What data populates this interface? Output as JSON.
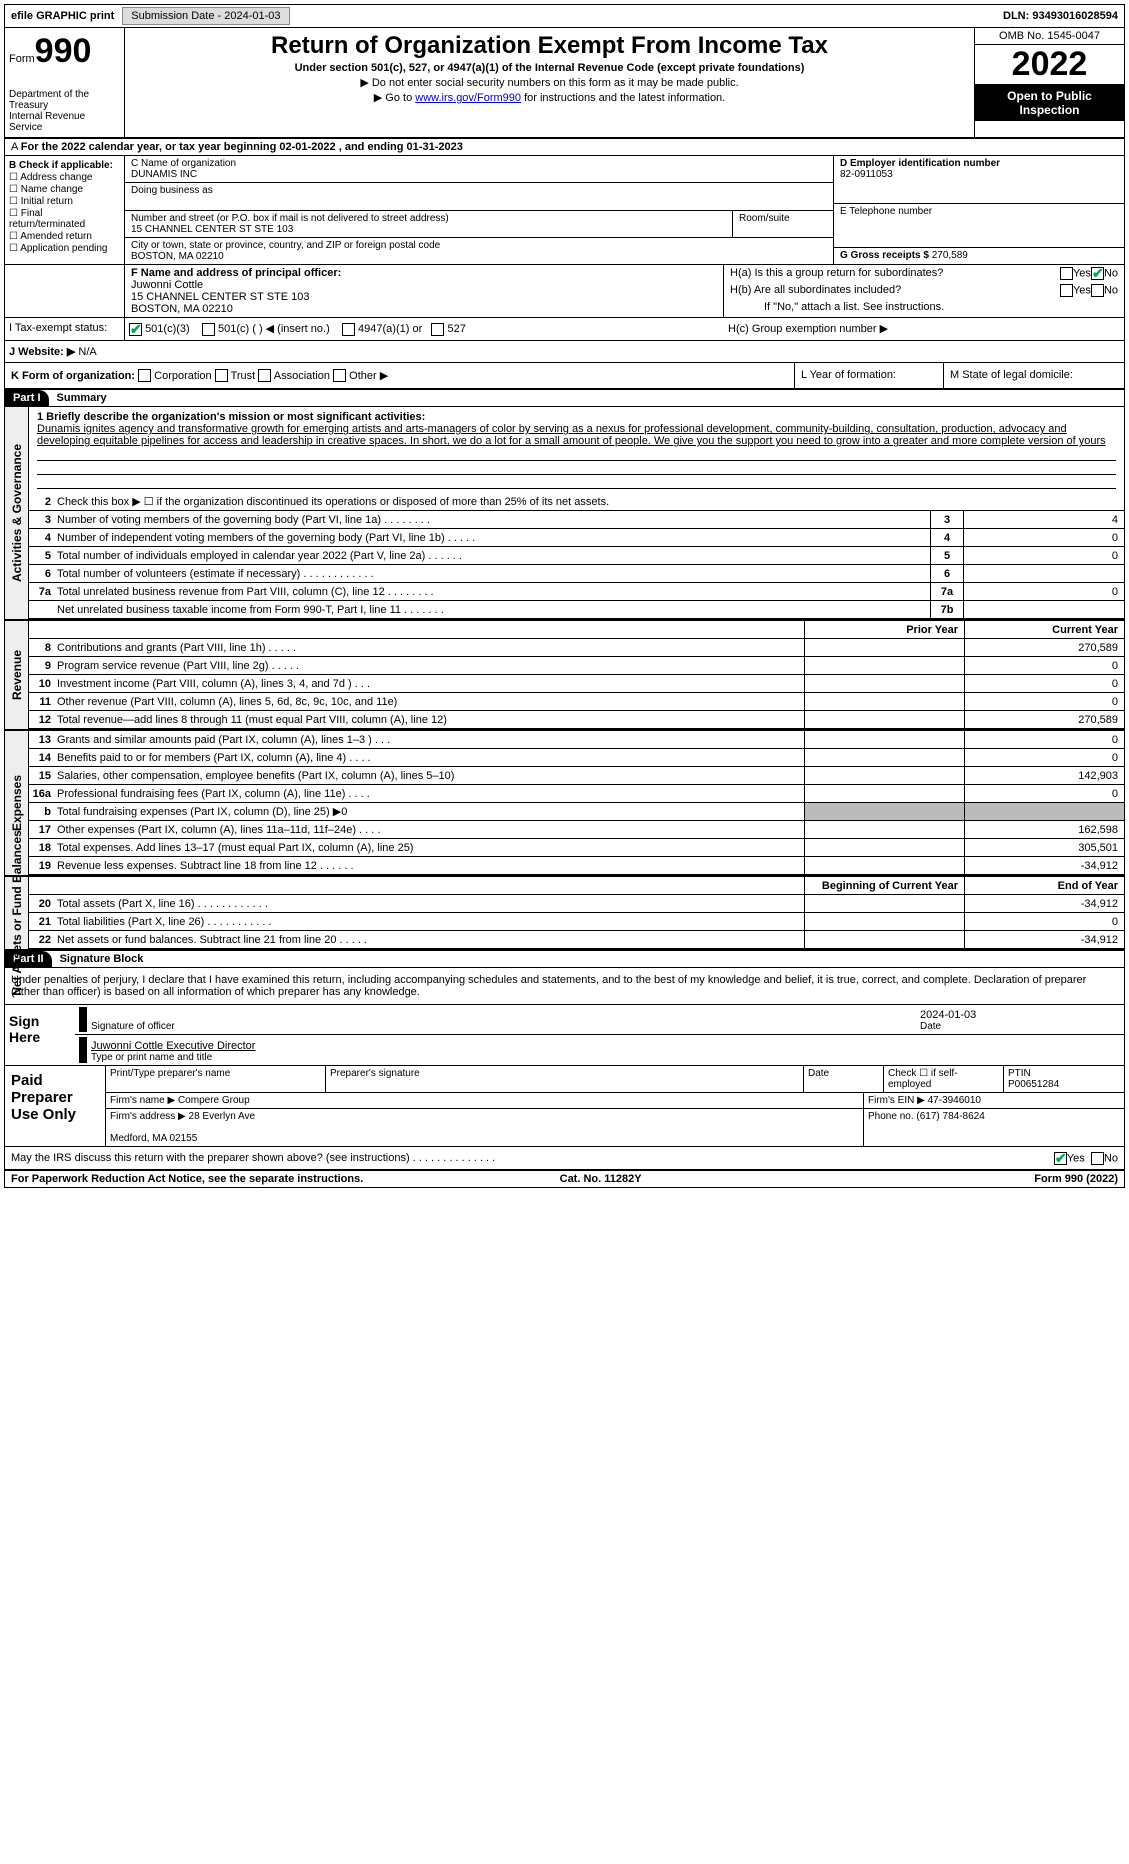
{
  "topbar": {
    "efile_label": "efile GRAPHIC print",
    "submission": "Submission Date - 2024-01-03",
    "dln": "DLN: 93493016028594"
  },
  "header": {
    "form_label": "Form",
    "form_num": "990",
    "dept": "Department of the Treasury",
    "irs": "Internal Revenue Service",
    "title": "Return of Organization Exempt From Income Tax",
    "subtitle": "Under section 501(c), 527, or 4947(a)(1) of the Internal Revenue Code (except private foundations)",
    "note1": "▶ Do not enter social security numbers on this form as it may be made public.",
    "note2_pre": "▶ Go to ",
    "note2_link": "www.irs.gov/Form990",
    "note2_post": " for instructions and the latest information.",
    "omb": "OMB No. 1545-0047",
    "year": "2022",
    "open": "Open to Public Inspection"
  },
  "row_a": "For the 2022 calendar year, or tax year beginning 02-01-2022    , and ending 01-31-2023",
  "check_b": {
    "label": "B Check if applicable:",
    "items": [
      "Address change",
      "Name change",
      "Initial return",
      "Final return/terminated",
      "Amended return",
      "Application pending"
    ]
  },
  "org": {
    "c_label": "C Name of organization",
    "name": "DUNAMIS INC",
    "dba_label": "Doing business as",
    "addr_label": "Number and street (or P.O. box if mail is not delivered to street address)",
    "room_label": "Room/suite",
    "addr": "15 CHANNEL CENTER ST STE 103",
    "city_label": "City or town, state or province, country, and ZIP or foreign postal code",
    "city": "BOSTON, MA  02210",
    "f_label": "F  Name and address of principal officer:",
    "officer": "Juwonni Cottle",
    "officer_addr": "15 CHANNEL CENTER ST STE 103\nBOSTON, MA  02210"
  },
  "right": {
    "d_label": "D Employer identification number",
    "ein": "82-0911053",
    "e_label": "E Telephone number",
    "g_label": "G Gross receipts $",
    "g_val": "270,589",
    "ha": "H(a)  Is this a group return for subordinates?",
    "hb": "H(b)  Are all subordinates included?",
    "hb_note": "If \"No,\" attach a list. See instructions.",
    "hc": "H(c)  Group exemption number ▶",
    "yes": "Yes",
    "no": "No"
  },
  "status": {
    "i_label": "I   Tax-exempt status:",
    "opts": [
      "501(c)(3)",
      "501(c) (  ) ◀ (insert no.)",
      "4947(a)(1) or",
      "527"
    ],
    "j_label": "J   Website: ▶",
    "j_val": "N/A",
    "k_label": "K Form of organization:",
    "k_opts": [
      "Corporation",
      "Trust",
      "Association",
      "Other ▶"
    ],
    "l_label": "L Year of formation:",
    "m_label": "M State of legal domicile:"
  },
  "part1": {
    "hdr": "Part I",
    "title": "Summary",
    "l1_label": "1  Briefly describe the organization's mission or most significant activities:",
    "mission": "Dunamis ignites agency and transformative growth for emerging artists and arts-managers of color by serving as a nexus for professional development, community-building, consultation, production, advocacy and developing equitable pipelines for access and leadership in creative spaces. In short, we do a lot for a small amount of people. We give you the support you need to grow into a greater and more complete version of yours",
    "l2": "Check this box ▶ ☐  if the organization discontinued its operations or disposed of more than 25% of its net assets.",
    "lines_gov": [
      {
        "n": "3",
        "t": "Number of voting members of the governing body (Part VI, line 1a)   .    .    .    .    .    .    .    .",
        "b": "3",
        "v": "4"
      },
      {
        "n": "4",
        "t": "Number of independent voting members of the governing body (Part VI, line 1b)   .    .    .    .    .",
        "b": "4",
        "v": "0"
      },
      {
        "n": "5",
        "t": "Total number of individuals employed in calendar year 2022 (Part V, line 2a)   .    .    .    .    .    .",
        "b": "5",
        "v": "0"
      },
      {
        "n": "6",
        "t": "Total number of volunteers (estimate if necessary)   .    .    .    .    .    .    .    .    .    .    .    .",
        "b": "6",
        "v": ""
      },
      {
        "n": "7a",
        "t": "Total unrelated business revenue from Part VIII, column (C), line 12   .    .    .    .    .    .    .    .",
        "b": "7a",
        "v": "0"
      },
      {
        "n": "",
        "t": "Net unrelated business taxable income from Form 990-T, Part I, line 11   .    .    .    .    .    .    .",
        "b": "7b",
        "v": ""
      }
    ],
    "col_prior": "Prior Year",
    "col_current": "Current Year",
    "lines_rev": [
      {
        "n": "8",
        "t": "Contributions and grants (Part VIII, line 1h)   .    .    .    .    .",
        "v1": "",
        "v2": "270,589"
      },
      {
        "n": "9",
        "t": "Program service revenue (Part VIII, line 2g)   .    .    .    .    .",
        "v1": "",
        "v2": "0"
      },
      {
        "n": "10",
        "t": "Investment income (Part VIII, column (A), lines 3, 4, and 7d )   .    .    .",
        "v1": "",
        "v2": "0"
      },
      {
        "n": "11",
        "t": "Other revenue (Part VIII, column (A), lines 5, 6d, 8c, 9c, 10c, and 11e)",
        "v1": "",
        "v2": "0"
      },
      {
        "n": "12",
        "t": "Total revenue—add lines 8 through 11 (must equal Part VIII, column (A), line 12)",
        "v1": "",
        "v2": "270,589"
      }
    ],
    "lines_exp": [
      {
        "n": "13",
        "t": "Grants and similar amounts paid (Part IX, column (A), lines 1–3 )   .    .    .",
        "v1": "",
        "v2": "0"
      },
      {
        "n": "14",
        "t": "Benefits paid to or for members (Part IX, column (A), line 4)   .    .    .    .",
        "v1": "",
        "v2": "0"
      },
      {
        "n": "15",
        "t": "Salaries, other compensation, employee benefits (Part IX, column (A), lines 5–10)",
        "v1": "",
        "v2": "142,903"
      },
      {
        "n": "16a",
        "t": "Professional fundraising fees (Part IX, column (A), line 11e)   .    .    .    .",
        "v1": "",
        "v2": "0"
      },
      {
        "n": "b",
        "t": "Total fundraising expenses (Part IX, column (D), line 25) ▶0",
        "v1": "grey",
        "v2": "grey"
      },
      {
        "n": "17",
        "t": "Other expenses (Part IX, column (A), lines 11a–11d, 11f–24e)   .    .    .    .",
        "v1": "",
        "v2": "162,598"
      },
      {
        "n": "18",
        "t": "Total expenses. Add lines 13–17 (must equal Part IX, column (A), line 25)",
        "v1": "",
        "v2": "305,501"
      },
      {
        "n": "19",
        "t": "Revenue less expenses. Subtract line 18 from line 12   .    .    .    .    .    .",
        "v1": "",
        "v2": "-34,912"
      }
    ],
    "col_begin": "Beginning of Current Year",
    "col_end": "End of Year",
    "lines_net": [
      {
        "n": "20",
        "t": "Total assets (Part X, line 16)   .    .    .    .    .    .    .    .    .    .    .    .",
        "v1": "",
        "v2": "-34,912"
      },
      {
        "n": "21",
        "t": "Total liabilities (Part X, line 26)   .    .    .    .    .    .    .    .    .    .    .",
        "v1": "",
        "v2": "0"
      },
      {
        "n": "22",
        "t": "Net assets or fund balances. Subtract line 21 from line 20   .    .    .    .    .",
        "v1": "",
        "v2": "-34,912"
      }
    ]
  },
  "side_labels": {
    "gov": "Activities & Governance",
    "rev": "Revenue",
    "exp": "Expenses",
    "net": "Net Assets or Fund Balances"
  },
  "part2": {
    "hdr": "Part II",
    "title": "Signature Block",
    "decl": "Under penalties of perjury, I declare that I have examined this return, including accompanying schedules and statements, and to the best of my knowledge and belief, it is true, correct, and complete. Declaration of preparer (other than officer) is based on all information of which preparer has any knowledge.",
    "sign_here": "Sign Here",
    "sig_officer": "Signature of officer",
    "date": "Date",
    "sig_date": "2024-01-03",
    "name_title": "Juwonni Cottle  Executive Director",
    "type_label": "Type or print name and title",
    "paid": "Paid Preparer Use Only",
    "p_name": "Print/Type preparer's name",
    "p_sig": "Preparer's signature",
    "p_date": "Date",
    "p_check": "Check ☐ if self-employed",
    "ptin_l": "PTIN",
    "ptin": "P00651284",
    "firm_name_l": "Firm's name    ▶",
    "firm_name": "Compere Group",
    "firm_ein_l": "Firm's EIN ▶",
    "firm_ein": "47-3946010",
    "firm_addr_l": "Firm's address ▶",
    "firm_addr": "28 Everlyn Ave\n\nMedford, MA  02155",
    "phone_l": "Phone no.",
    "phone": "(617) 784-8624",
    "discuss": "May the IRS discuss this return with the preparer shown above? (see instructions)   .    .    .    .    .    .    .    .    .    .    .    .    .    ."
  },
  "footer": {
    "left": "For Paperwork Reduction Act Notice, see the separate instructions.",
    "mid": "Cat. No. 11282Y",
    "right": "Form 990 (2022)"
  }
}
